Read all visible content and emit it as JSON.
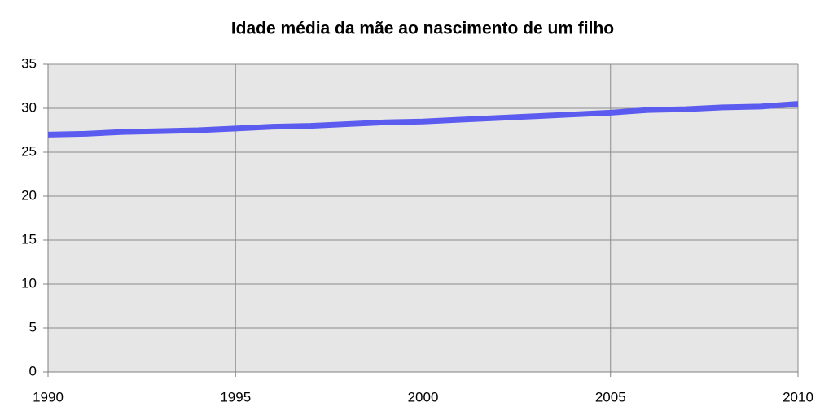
{
  "chart_data": {
    "type": "line",
    "title": "Idade média da mãe ao nascimento de um filho",
    "x": [
      1990,
      1991,
      1992,
      1993,
      1994,
      1995,
      1996,
      1997,
      1998,
      1999,
      2000,
      2001,
      2002,
      2003,
      2004,
      2005,
      2006,
      2007,
      2008,
      2009,
      2010
    ],
    "series": [
      {
        "name": "Idade média",
        "color": "#5b5bef",
        "values": [
          27.0,
          27.1,
          27.3,
          27.4,
          27.5,
          27.7,
          27.9,
          28.0,
          28.2,
          28.4,
          28.5,
          28.7,
          28.9,
          29.1,
          29.3,
          29.5,
          29.8,
          29.9,
          30.1,
          30.2,
          30.5
        ]
      }
    ],
    "xlim": [
      1990,
      2010
    ],
    "xticks": [
      1990,
      1995,
      2000,
      2005,
      2010
    ],
    "ylim": [
      0,
      35
    ],
    "yticks": [
      0,
      5,
      10,
      15,
      20,
      25,
      30,
      35
    ],
    "grid": true
  }
}
